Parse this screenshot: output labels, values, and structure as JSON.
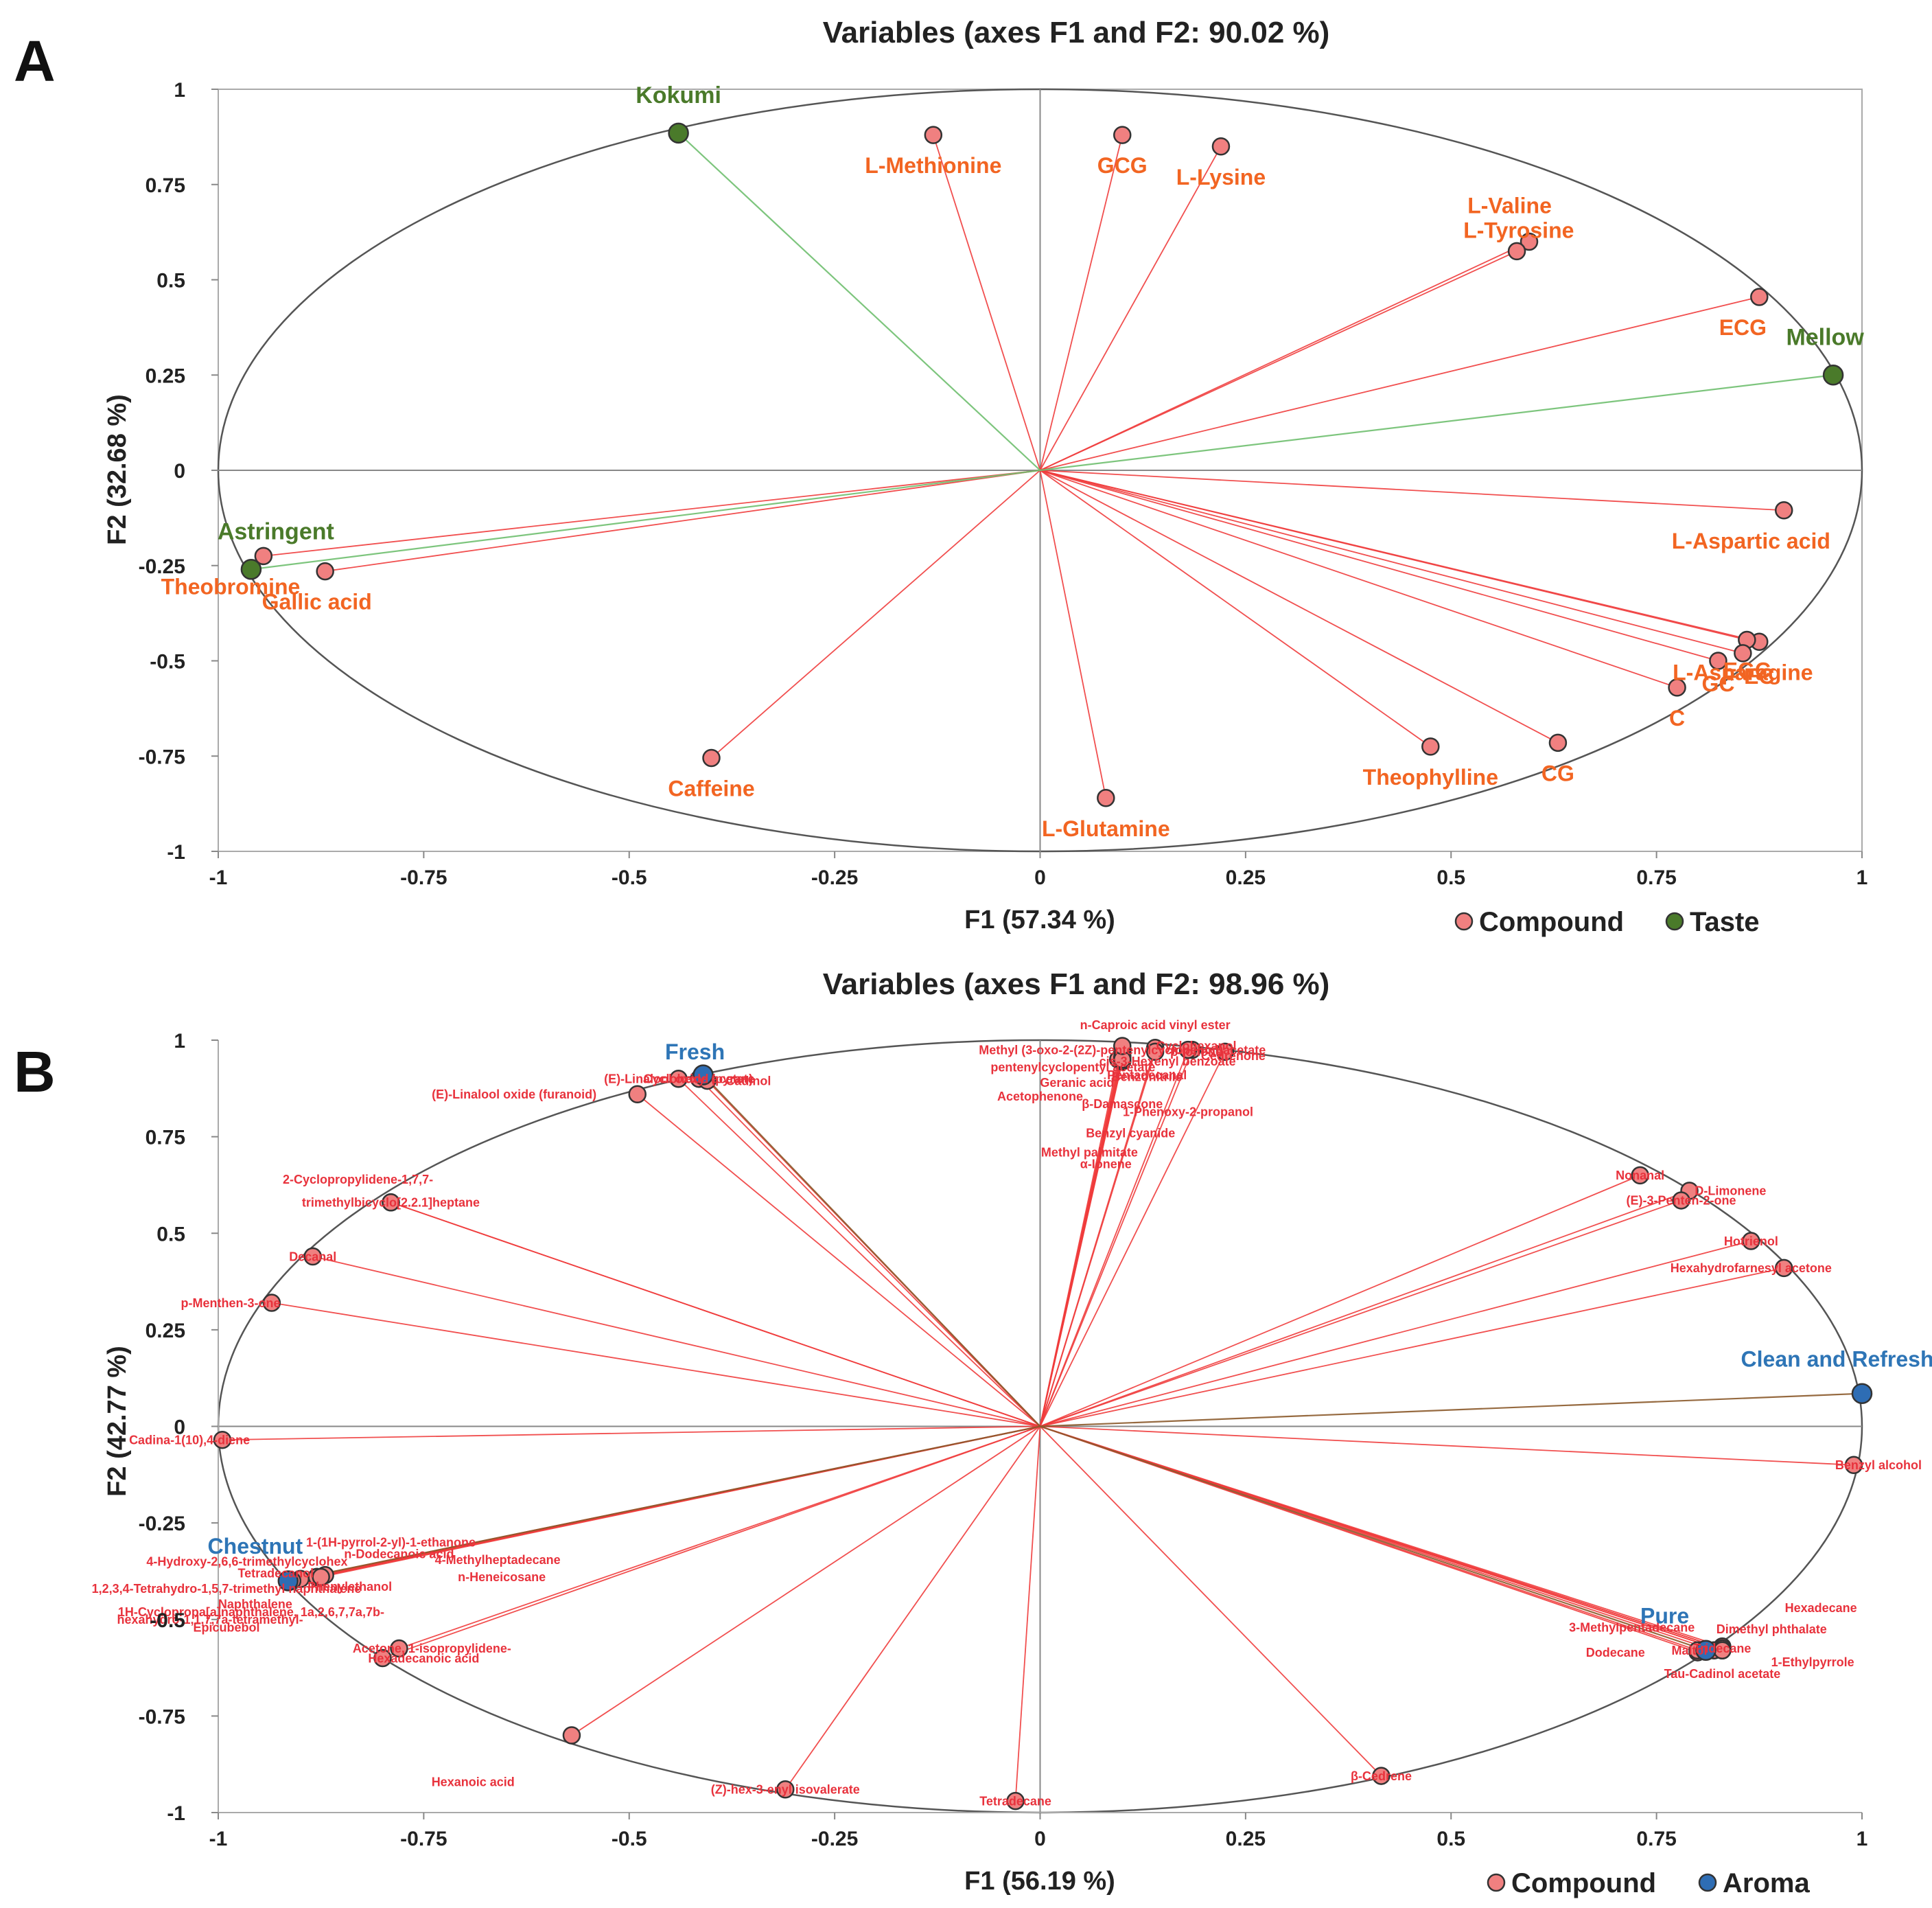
{
  "colors": {
    "compound_fill": "#f08080",
    "compound_line": "#f03c3c",
    "compound_text_a": "#f26522",
    "compound_text_b": "#e8323c",
    "taste_fill": "#4a7a2a",
    "taste_line": "#6fbf6f",
    "taste_text": "#4a7a2a",
    "aroma_fill": "#2e6db4",
    "aroma_line": "#8b5a2b",
    "aroma_text": "#2e75b6",
    "axis": "#666666",
    "circle": "#555555"
  },
  "chart_data": [
    {
      "panel": "A",
      "type": "scatter",
      "title": "Variables (axes F1 and F2: 90.02 %)",
      "xlabel": "F1 (57.34 %)",
      "ylabel": "F2 (32.68 %)",
      "xlim": [
        -1,
        1
      ],
      "ylim": [
        -1,
        1
      ],
      "xticks": [
        "-1",
        "-0.75",
        "-0.5",
        "-0.25",
        "0",
        "0.25",
        "0.5",
        "0.75",
        "1"
      ],
      "yticks": [
        "1",
        "0.75",
        "0.5",
        "0.25",
        "0",
        "-0.25",
        "-0.5",
        "-0.75",
        "-1"
      ],
      "legend": [
        {
          "name": "Compound",
          "group": "compound"
        },
        {
          "name": "Taste",
          "group": "taste"
        }
      ],
      "series": [
        {
          "name": "Compound",
          "group": "compound",
          "points": [
            {
              "label": "L-Methionine",
              "x": -0.13,
              "y": 0.88,
              "anchor": "middle",
              "dy": -0.08
            },
            {
              "label": "GCG",
              "x": 0.1,
              "y": 0.88,
              "anchor": "middle",
              "dy": -0.08
            },
            {
              "label": "L-Lysine",
              "x": 0.22,
              "y": 0.85,
              "anchor": "middle",
              "dy": -0.08
            },
            {
              "label": "L-Tyrosine",
              "x": 0.595,
              "y": 0.6,
              "anchor": "start",
              "dx": -0.08,
              "dy": 0.03
            },
            {
              "label": "L-Valine",
              "x": 0.58,
              "y": 0.575,
              "anchor": "start",
              "dx": -0.06,
              "dy": 0.12
            },
            {
              "label": "ECG",
              "x": 0.875,
              "y": 0.455,
              "anchor": "middle",
              "dx": -0.02,
              "dy": -0.08
            },
            {
              "label": "L-Aspartic acid",
              "x": 0.905,
              "y": -0.105,
              "anchor": "middle",
              "dx": -0.04,
              "dy": -0.08
            },
            {
              "label": "L-Asparagine",
              "x": 0.875,
              "y": -0.45,
              "anchor": "middle",
              "dx": -0.02,
              "dy": -0.08
            },
            {
              "label": "EGC",
              "x": 0.86,
              "y": -0.445,
              "anchor": "middle",
              "dy": -0.08
            },
            {
              "label": "EC",
              "x": 0.855,
              "y": -0.48,
              "anchor": "middle",
              "dx": 0.02,
              "dy": -0.06
            },
            {
              "label": "GC",
              "x": 0.825,
              "y": -0.5,
              "anchor": "middle",
              "dx": 0.0,
              "dy": -0.06
            },
            {
              "label": "C",
              "x": 0.775,
              "y": -0.57,
              "anchor": "middle",
              "dy": -0.08
            },
            {
              "label": "CG",
              "x": 0.63,
              "y": -0.715,
              "anchor": "middle",
              "dy": -0.08
            },
            {
              "label": "Theophylline",
              "x": 0.475,
              "y": -0.725,
              "anchor": "middle",
              "dy": -0.08
            },
            {
              "label": "L-Glutamine",
              "x": 0.08,
              "y": -0.86,
              "anchor": "middle",
              "dy": -0.08
            },
            {
              "label": "Caffeine",
              "x": -0.4,
              "y": -0.755,
              "anchor": "middle",
              "dy": -0.08
            },
            {
              "label": "Gallic acid",
              "x": -0.87,
              "y": -0.265,
              "anchor": "middle",
              "dx": -0.01,
              "dy": -0.08
            },
            {
              "label": "Theobromine",
              "x": -0.945,
              "y": -0.225,
              "anchor": "middle",
              "dx": -0.04,
              "dy": -0.08
            }
          ]
        },
        {
          "name": "Taste",
          "group": "taste",
          "points": [
            {
              "label": "Kokumi",
              "x": -0.44,
              "y": 0.885,
              "anchor": "middle",
              "dy": 0.1
            },
            {
              "label": "Mellow",
              "x": 0.965,
              "y": 0.25,
              "anchor": "middle",
              "dx": -0.01,
              "dy": 0.1
            },
            {
              "label": "Astringent",
              "x": -0.96,
              "y": -0.26,
              "anchor": "middle",
              "dx": 0.03,
              "dy": 0.1
            }
          ]
        }
      ]
    },
    {
      "panel": "B",
      "type": "scatter",
      "title": "Variables (axes F1 and F2: 98.96 %)",
      "xlabel": "F1 (56.19 %)",
      "ylabel": "F2 (42.77 %)",
      "xlim": [
        -1,
        1
      ],
      "ylim": [
        -1,
        1
      ],
      "xticks": [
        "-1",
        "-0.75",
        "-0.5",
        "-0.25",
        "0",
        "0.25",
        "0.5",
        "0.75",
        "1"
      ],
      "yticks": [
        "1",
        "0.75",
        "0.5",
        "0.25",
        "0",
        "-0.25",
        "-0.5",
        "-0.75",
        "-1"
      ],
      "legend": [
        {
          "name": "Compound",
          "group": "compound"
        },
        {
          "name": "Aroma",
          "group": "aroma"
        }
      ],
      "series": [
        {
          "name": "Compound",
          "group": "compound",
          "points": [
            {
              "label": "n-Caproic acid vinyl ester",
              "x": 0.14,
              "y": 0.98,
              "anchor": "middle",
              "dy": 0.06
            },
            {
              "label": "Methyl (3-oxo-2-(2Z)-pentenylcyclopentyl)acetate",
              "x": 0.1,
              "y": 0.975,
              "anchor": "middle",
              "dx": 0.0,
              "dy": 0.0
            },
            {
              "label": "pentenylcyclopentyl acetate",
              "x": 0.1,
              "y": 0.96,
              "anchor": "middle",
              "dx": -0.06,
              "dy": -0.03
            },
            {
              "label": "Geranic acid",
              "x": 0.095,
              "y": 0.95,
              "anchor": "middle",
              "dx": -0.05,
              "dy": -0.06
            },
            {
              "label": "Acetophenone",
              "x": 0.1,
              "y": 0.945,
              "anchor": "middle",
              "dx": -0.1,
              "dy": -0.09
            },
            {
              "label": "β-Ionone",
              "x": 0.1,
              "y": 0.97,
              "anchor": "middle",
              "dx": 0.09,
              "dy": 0.0
            },
            {
              "label": "cis-3-Hexenyl benzoate",
              "x": 0.185,
              "y": 0.975,
              "anchor": "middle",
              "dx": -0.03,
              "dy": -0.03
            },
            {
              "label": "Pentadecanal",
              "x": 0.14,
              "y": 0.97,
              "anchor": "middle",
              "dx": -0.01,
              "dy": -0.06
            },
            {
              "label": "Benzonitrile",
              "x": 0.18,
              "y": 0.975,
              "anchor": "middle",
              "dx": -0.05,
              "dy": -0.07
            },
            {
              "label": "β-Damascone",
              "x": 0.1,
              "y": 0.955,
              "anchor": "middle",
              "dx": 0.0,
              "dy": -0.12
            },
            {
              "label": "1-Phenoxy-2-propanol",
              "x": 0.1,
              "y": 0.955,
              "anchor": "middle",
              "dx": 0.08,
              "dy": -0.14
            },
            {
              "label": "Benzyl cyanide",
              "x": 0.1,
              "y": 0.95,
              "anchor": "middle",
              "dx": 0.01,
              "dy": -0.19
            },
            {
              "label": "Methyl palmitate",
              "x": 0.1,
              "y": 0.95,
              "anchor": "middle",
              "dx": -0.04,
              "dy": -0.24
            },
            {
              "label": "α-Ionene",
              "x": 0.1,
              "y": 0.95,
              "anchor": "middle",
              "dx": -0.02,
              "dy": -0.27
            },
            {
              "label": "Cedrenone",
              "x": 0.225,
              "y": 0.97,
              "anchor": "middle",
              "dx": 0.01,
              "dy": -0.01
            },
            {
              "label": "Cyclohexanol",
              "x": 0.1,
              "y": 0.985,
              "anchor": "middle",
              "dx": 0.09,
              "dy": 0.0
            },
            {
              "label": "(E)-Linalool oxide (pyran)",
              "x": -0.44,
              "y": 0.9,
              "anchor": "middle",
              "dx": 0.0,
              "dy": 0.0
            },
            {
              "label": "Cyclohexyl acetate",
              "x": -0.415,
              "y": 0.9,
              "anchor": "middle",
              "dx": 0.0,
              "dy": 0.0
            },
            {
              "label": "Cadinol",
              "x": -0.405,
              "y": 0.895,
              "anchor": "middle",
              "dx": 0.05,
              "dy": 0.0
            },
            {
              "label": "(E)-Linalool oxide (furanoid)",
              "x": -0.49,
              "y": 0.86,
              "anchor": "middle",
              "dx": -0.15,
              "dy": 0.0
            },
            {
              "label": "2-Cyclopropylidene-1,7,7-",
              "x": -0.79,
              "y": 0.58,
              "anchor": "middle",
              "dx": -0.04,
              "dy": 0.06
            },
            {
              "label": "trimethylbicyclo[2.2.1]heptane",
              "x": -0.79,
              "y": 0.58,
              "anchor": "middle",
              "dx": 0.0,
              "dy": 0.0
            },
            {
              "label": "Decanal",
              "x": -0.885,
              "y": 0.44,
              "anchor": "middle",
              "dx": 0.0,
              "dy": 0.0
            },
            {
              "label": "p-Menthen-3-one",
              "x": -0.935,
              "y": 0.32,
              "anchor": "middle",
              "dx": -0.05,
              "dy": 0.0
            },
            {
              "label": "Cadina-1(10),4-diene",
              "x": -0.995,
              "y": -0.035,
              "anchor": "middle",
              "dx": -0.04,
              "dy": 0.0
            },
            {
              "label": "Nonanal",
              "x": 0.73,
              "y": 0.65,
              "anchor": "middle",
              "dx": 0.0,
              "dy": 0.0
            },
            {
              "label": "D-Limonene",
              "x": 0.79,
              "y": 0.61,
              "anchor": "middle",
              "dx": 0.05,
              "dy": 0.0
            },
            {
              "label": "(E)-3-Penten-2-one",
              "x": 0.78,
              "y": 0.585,
              "anchor": "middle",
              "dx": 0.0,
              "dy": 0.0
            },
            {
              "label": "Hotrienol",
              "x": 0.865,
              "y": 0.48,
              "anchor": "middle",
              "dx": 0.0,
              "dy": 0.0
            },
            {
              "label": "Hexahydrofarnesyl acetone",
              "x": 0.905,
              "y": 0.41,
              "anchor": "middle",
              "dx": -0.04,
              "dy": 0.0
            },
            {
              "label": "Benzyl alcohol",
              "x": 0.99,
              "y": -0.1,
              "anchor": "middle",
              "dx": 0.03,
              "dy": 0.0
            },
            {
              "label": "1-(1H-pyrrol-2-yl)-1-ethanone",
              "x": -0.88,
              "y": -0.39,
              "anchor": "middle",
              "dx": 0.09,
              "dy": 0.09
            },
            {
              "label": "n-Dodecanoic acid",
              "x": -0.88,
              "y": -0.39,
              "anchor": "middle",
              "dx": 0.1,
              "dy": 0.06
            },
            {
              "label": "4-Methylheptadecane",
              "x": -0.87,
              "y": -0.385,
              "anchor": "middle",
              "dx": 0.21,
              "dy": 0.04
            },
            {
              "label": "4-Hydroxy-2,6,6-trimethylcyclohex",
              "x": -0.915,
              "y": -0.4,
              "anchor": "middle",
              "dx": -0.05,
              "dy": 0.05
            },
            {
              "label": "Tetradecanol",
              "x": -0.91,
              "y": -0.4,
              "anchor": "middle",
              "dx": -0.02,
              "dy": 0.02
            },
            {
              "label": "n-Heneicosane",
              "x": -0.875,
              "y": -0.39,
              "anchor": "middle",
              "dx": 0.22,
              "dy": 0.0
            },
            {
              "label": "1,2,3,4-Tetrahydro-1,5,7-trimethyl naphthalene",
              "x": -0.91,
              "y": -0.4,
              "anchor": "middle",
              "dx": -0.08,
              "dy": -0.02
            },
            {
              "label": "Phenylethanol",
              "x": -0.9,
              "y": -0.395,
              "anchor": "middle",
              "dx": 0.06,
              "dy": -0.02
            },
            {
              "label": "Naphthalene",
              "x": -0.915,
              "y": -0.4,
              "anchor": "middle",
              "dx": -0.04,
              "dy": -0.06
            },
            {
              "label": "1H-Cyclopropa[a]naphthalene, 1a,2,6,7,7a,7b-",
              "x": -0.91,
              "y": -0.4,
              "anchor": "middle",
              "dx": -0.05,
              "dy": -0.08
            },
            {
              "label": "hexahydro-1,1,7,7a-tetramethyl-",
              "x": -0.91,
              "y": -0.4,
              "anchor": "middle",
              "dx": -0.1,
              "dy": -0.1
            },
            {
              "label": "Epicubebol",
              "x": -0.91,
              "y": -0.4,
              "anchor": "middle",
              "dx": -0.08,
              "dy": -0.12
            },
            {
              "label": "Acetone, 1-isopropylidene-",
              "x": -0.78,
              "y": -0.575,
              "anchor": "middle",
              "dx": 0.04,
              "dy": 0.0
            },
            {
              "label": "Hexadecanoic acid",
              "x": -0.8,
              "y": -0.6,
              "anchor": "middle",
              "dx": 0.05,
              "dy": 0.0
            },
            {
              "label": "Hexanoic acid",
              "x": -0.57,
              "y": -0.8,
              "anchor": "middle",
              "dx": -0.12,
              "dy": -0.12
            },
            {
              "label": "(Z)-hex-3-enyl isovalerate",
              "x": -0.31,
              "y": -0.94,
              "anchor": "middle",
              "dx": 0.0,
              "dy": 0.0
            },
            {
              "label": "Tetradecane",
              "x": -0.03,
              "y": -0.97,
              "anchor": "middle",
              "dx": 0.0,
              "dy": 0.0
            },
            {
              "label": "β-Cedrene",
              "x": 0.415,
              "y": -0.905,
              "anchor": "middle",
              "dx": 0.0,
              "dy": 0.0
            },
            {
              "label": "Hexadecane",
              "x": 0.83,
              "y": -0.57,
              "anchor": "middle",
              "dx": 0.12,
              "dy": 0.1
            },
            {
              "label": "3-Methylpentadecane",
              "x": 0.82,
              "y": -0.58,
              "anchor": "middle",
              "dx": -0.1,
              "dy": 0.06
            },
            {
              "label": "Dimethyl phthalate",
              "x": 0.83,
              "y": -0.575,
              "anchor": "middle",
              "dx": 0.06,
              "dy": 0.05
            },
            {
              "label": "Dodecane",
              "x": 0.8,
              "y": -0.585,
              "anchor": "middle",
              "dx": -0.1,
              "dy": 0.0
            },
            {
              "label": "Maltol",
              "x": 0.8,
              "y": -0.58,
              "anchor": "middle",
              "dx": -0.01,
              "dy": 0.0
            },
            {
              "label": "Tridecane",
              "x": 0.83,
              "y": -0.575,
              "anchor": "middle",
              "dx": -0.0,
              "dy": 0.0
            },
            {
              "label": "1-Ethylpyrrole",
              "x": 0.83,
              "y": -0.58,
              "anchor": "middle",
              "dx": 0.11,
              "dy": -0.03
            },
            {
              "label": "Tau-Cadinol acetate",
              "x": 0.83,
              "y": -0.58,
              "anchor": "middle",
              "dx": 0.0,
              "dy": -0.06
            }
          ]
        },
        {
          "name": "Aroma",
          "group": "aroma",
          "points": [
            {
              "label": "Fresh",
              "x": -0.41,
              "y": 0.91,
              "anchor": "middle",
              "dx": -0.01,
              "dy": 0.06
            },
            {
              "label": "Clean and Refreshing",
              "x": 1.0,
              "y": 0.085,
              "anchor": "middle",
              "dx": -0.01,
              "dy": 0.09
            },
            {
              "label": "Chestnut",
              "x": -0.915,
              "y": -0.4,
              "anchor": "middle",
              "dx": -0.04,
              "dy": 0.09
            },
            {
              "label": "Pure",
              "x": 0.81,
              "y": -0.58,
              "anchor": "middle",
              "dx": -0.05,
              "dy": 0.09
            }
          ]
        }
      ]
    }
  ]
}
